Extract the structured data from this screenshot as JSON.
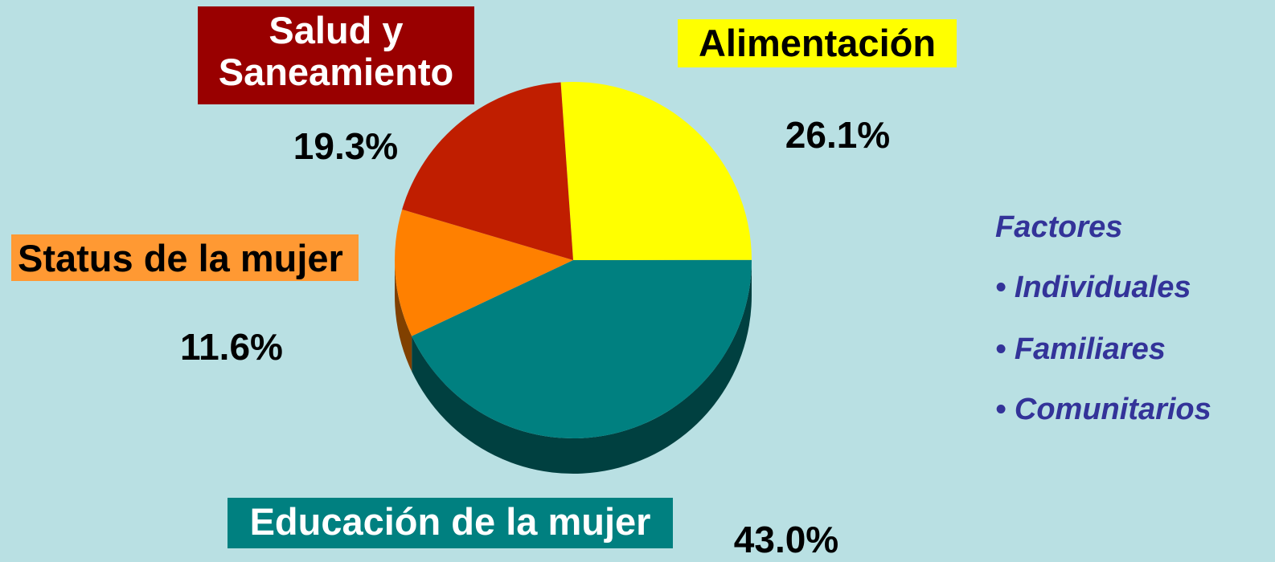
{
  "chart_data": {
    "type": "pie",
    "categories": [
      "Alimentación",
      "Educación de la mujer",
      "Status de la mujer",
      "Salud y Saneamiento"
    ],
    "values": [
      26.1,
      43.0,
      11.6,
      19.3
    ],
    "value_labels": [
      "26.1%",
      "43.0%",
      "11.6%",
      "19.3%"
    ],
    "colors": [
      "#ffff00",
      "#008080",
      "#ff8000",
      "#c01e00"
    ],
    "annotation": {
      "title": "Factores",
      "items": [
        "Individuales",
        "Familiares",
        "Comunitarios"
      ]
    }
  }
}
